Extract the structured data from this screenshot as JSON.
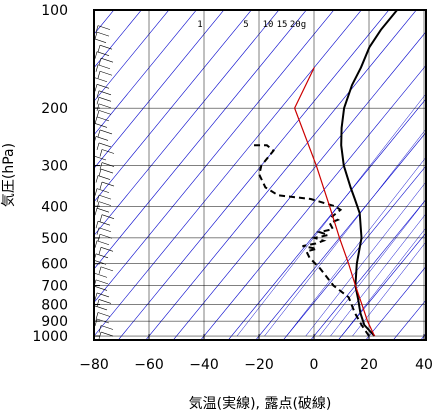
{
  "chart_data": {
    "type": "line",
    "diagram": "skew-T log-p",
    "xlabel": "気温(実線), 露点(破線)",
    "ylabel": "気圧(hPa)",
    "xlim": [
      -80,
      40
    ],
    "ylim": [
      1050,
      100
    ],
    "y_scale": "log",
    "x_ticks": [
      "−80",
      "−60",
      "−40",
      "−20",
      "0",
      "20",
      "40"
    ],
    "x_tick_values": [
      -80,
      -60,
      -40,
      -20,
      0,
      20,
      40
    ],
    "y_ticks": [
      "100",
      "200",
      "300",
      "400",
      "500",
      "600",
      "700",
      "800",
      "900",
      "1000"
    ],
    "y_tick_values": [
      100,
      200,
      300,
      400,
      500,
      600,
      700,
      800,
      900,
      1000
    ],
    "mixing_ratio_labels": [
      "1",
      "5",
      "10",
      "15",
      "20g"
    ],
    "mixing_ratio_values": [
      1,
      5,
      10,
      15,
      20
    ],
    "grid": true,
    "colors": {
      "isotherm": "#0000cc",
      "parcel": "#cc0000",
      "temperature": "#000000",
      "dewpoint": "#000000",
      "grid": "#000000"
    },
    "series": [
      {
        "style": "solid",
        "points": [
          [
            22,
            1000
          ],
          [
            15,
            925
          ],
          [
            10,
            850
          ],
          [
            5,
            770
          ],
          [
            0,
            700
          ],
          [
            -6,
            600
          ],
          [
            -12,
            500
          ],
          [
            -20,
            420
          ],
          [
            -26,
            380
          ],
          [
            -31,
            350
          ],
          [
            -40,
            300
          ],
          [
            -47,
            260
          ],
          [
            -52,
            230
          ],
          [
            -57,
            200
          ],
          [
            -61,
            170
          ],
          [
            -63,
            150
          ],
          [
            -66,
            130
          ],
          [
            -67,
            115
          ],
          [
            -67,
            100
          ]
        ]
      },
      {
        "style": "dashed",
        "points": [
          [
            20,
            1000
          ],
          [
            14,
            925
          ],
          [
            8,
            850
          ],
          [
            1,
            760
          ],
          [
            -8,
            700
          ],
          [
            -18,
            620
          ],
          [
            -25,
            575
          ],
          [
            -28,
            550
          ],
          [
            -25,
            540
          ],
          [
            -31,
            530
          ],
          [
            -27,
            520
          ],
          [
            -25,
            510
          ],
          [
            -29,
            500
          ],
          [
            -25,
            490
          ],
          [
            -29,
            480
          ],
          [
            -25,
            470
          ],
          [
            -28,
            450
          ],
          [
            -26,
            440
          ],
          [
            -29,
            430
          ],
          [
            -28,
            410
          ],
          [
            -31,
            400
          ],
          [
            -42,
            380
          ],
          [
            -55,
            370
          ],
          [
            -62,
            350
          ],
          [
            -68,
            320
          ],
          [
            -70,
            300
          ],
          [
            -70,
            270
          ],
          [
            -74,
            260
          ],
          [
            -80,
            260
          ]
        ]
      },
      {
        "style": "parcel",
        "points": [
          [
            22,
            1000
          ],
          [
            15,
            900
          ],
          [
            8,
            800
          ],
          [
            0,
            700
          ],
          [
            -9,
            600
          ],
          [
            -20,
            500
          ],
          [
            -33,
            400
          ],
          [
            -50,
            300
          ],
          [
            -75,
            200
          ],
          [
            -80,
            150
          ]
        ]
      }
    ]
  }
}
